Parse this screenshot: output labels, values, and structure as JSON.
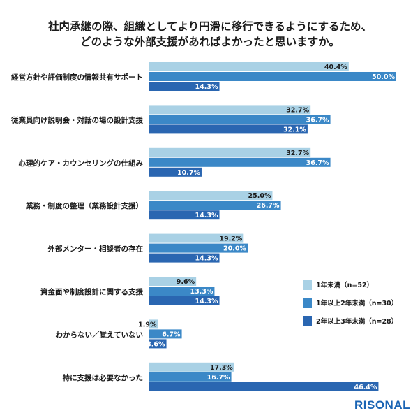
{
  "chart_data": {
    "type": "bar",
    "orientation": "horizontal",
    "title": [
      "社内承継の際、組織としてより円滑に移行できるようにするため、",
      "どのような外部支援があればよかったと思いますか。"
    ],
    "categories": [
      "経営方針や評価制度の情報共有サポート",
      "従業員向け説明会・対話の場の設計支援",
      "心理的ケア・カウンセリングの仕組み",
      "業務・制度の整理（業務設計支援）",
      "外部メンター・相談者の存在",
      "資金面や制度設計に関する支援",
      "わからない／覚えていない",
      "特に支援は必要なかった"
    ],
    "series": [
      {
        "name": "1年未満（n=52）",
        "color": "#a9d1e5",
        "label_color": "#1a1a1a",
        "values": [
          40.4,
          32.7,
          32.7,
          25.0,
          19.2,
          9.6,
          1.9,
          17.3
        ]
      },
      {
        "name": "1年以上2年未満（n=30）",
        "color": "#3b88c7",
        "label_color": "#ffffff",
        "values": [
          50.0,
          36.7,
          36.7,
          26.7,
          20.0,
          13.3,
          6.7,
          16.7
        ]
      },
      {
        "name": "2年以上3年未満（n=28）",
        "color": "#2a66b1",
        "label_color": "#ffffff",
        "values": [
          14.3,
          32.1,
          10.7,
          14.3,
          14.3,
          14.3,
          3.6,
          46.4
        ]
      }
    ],
    "unit": "%",
    "xlim": [
      0,
      50
    ],
    "grid": false,
    "legend": "right"
  },
  "logo": "RISONAL"
}
